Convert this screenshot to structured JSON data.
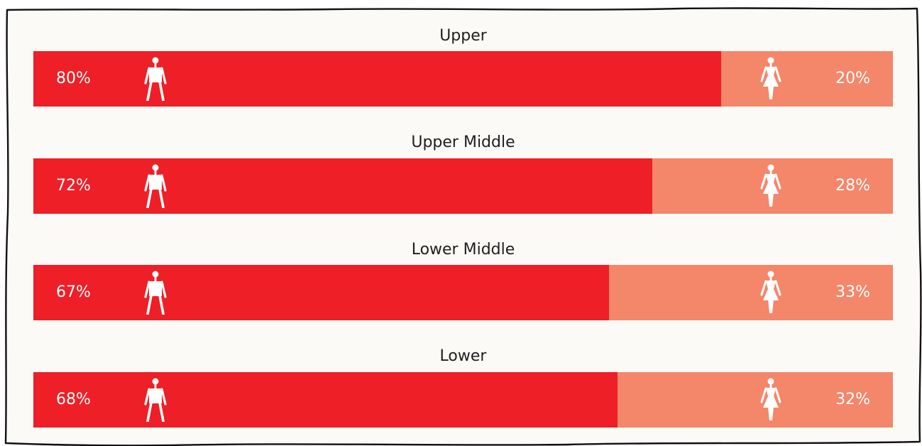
{
  "colors": {
    "male": "#ee1f26",
    "female": "#f4866a",
    "background": "#fcfaf7",
    "frame": "#111111",
    "text": "#1f1f1f"
  },
  "icons": {
    "male": "man-icon",
    "female": "woman-icon"
  },
  "chart_data": {
    "type": "bar",
    "orientation": "horizontal-stacked-100",
    "categories": [
      "Upper",
      "Upper Middle",
      "Lower Middle",
      "Lower"
    ],
    "series": [
      {
        "values": [
          80,
          72,
          67,
          68
        ],
        "labels": [
          "80%",
          "72%",
          "67%",
          "68%"
        ]
      },
      {
        "values": [
          20,
          28,
          33,
          32
        ],
        "labels": [
          "20%",
          "28%",
          "33%",
          "32%"
        ]
      }
    ],
    "xlim": [
      0,
      100
    ],
    "grid": false,
    "legend": "none"
  }
}
